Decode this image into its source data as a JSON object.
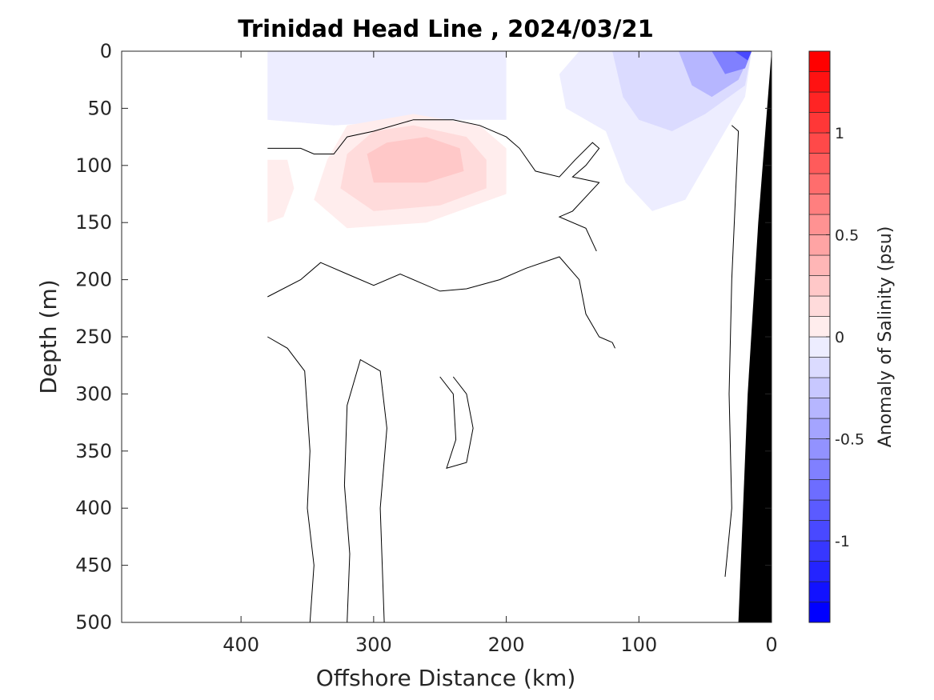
{
  "chart_data": {
    "type": "heatmap",
    "title": "Trinidad Head Line , 2024/03/21",
    "xlabel": "Offshore Distance (km)",
    "ylabel": "Depth (m)",
    "colorbar_label": "Anomaly of Salinity (psu)",
    "x_axis": {
      "range": [
        490,
        0
      ],
      "reversed": true,
      "ticks": [
        400,
        300,
        200,
        100,
        0
      ]
    },
    "y_axis": {
      "range": [
        0,
        500
      ],
      "reversed": true,
      "ticks": [
        0,
        50,
        100,
        150,
        200,
        250,
        300,
        350,
        400,
        450,
        500
      ]
    },
    "colorbar": {
      "range": [
        -1.4,
        1.4
      ],
      "step": 0.1,
      "ticks": [
        -1,
        -0.5,
        0,
        0.5,
        1
      ],
      "tick_labels": [
        "-1",
        "-0.5",
        "0",
        "0.5",
        "1"
      ],
      "negative_color": "#0000ff",
      "positive_color": "#ff0000"
    },
    "data_x_extent_km": [
      380,
      0
    ],
    "filled_regions": [
      {
        "name": "surface-negative-west",
        "value": -0.1,
        "points": [
          [
            380,
            0
          ],
          [
            200,
            0
          ],
          [
            200,
            60
          ],
          [
            260,
            60
          ],
          [
            330,
            65
          ],
          [
            380,
            60
          ]
        ]
      },
      {
        "name": "surface-negative-east",
        "value": -0.1,
        "points": [
          [
            145,
            0
          ],
          [
            15,
            0
          ],
          [
            20,
            40
          ],
          [
            40,
            80
          ],
          [
            65,
            130
          ],
          [
            90,
            140
          ],
          [
            110,
            115
          ],
          [
            125,
            70
          ],
          [
            155,
            50
          ],
          [
            160,
            20
          ]
        ]
      },
      {
        "name": "nearshore-negative-1",
        "value": -0.2,
        "points": [
          [
            120,
            0
          ],
          [
            15,
            0
          ],
          [
            20,
            30
          ],
          [
            50,
            55
          ],
          [
            75,
            70
          ],
          [
            100,
            60
          ],
          [
            112,
            40
          ]
        ]
      },
      {
        "name": "nearshore-negative-2",
        "value": -0.4,
        "points": [
          [
            70,
            0
          ],
          [
            15,
            0
          ],
          [
            25,
            25
          ],
          [
            45,
            40
          ],
          [
            60,
            30
          ]
        ]
      },
      {
        "name": "nearshore-negative-3",
        "value": -0.7,
        "points": [
          [
            45,
            0
          ],
          [
            15,
            0
          ],
          [
            20,
            15
          ],
          [
            35,
            20
          ]
        ]
      },
      {
        "name": "nearshore-negative-4",
        "value": -1.0,
        "points": [
          [
            28,
            0
          ],
          [
            15,
            0
          ],
          [
            18,
            8
          ]
        ]
      },
      {
        "name": "subsurface-positive-1",
        "value": 0.1,
        "points": [
          [
            335,
            95
          ],
          [
            320,
            65
          ],
          [
            270,
            55
          ],
          [
            220,
            65
          ],
          [
            200,
            85
          ],
          [
            200,
            125
          ],
          [
            260,
            150
          ],
          [
            320,
            155
          ],
          [
            345,
            130
          ]
        ]
      },
      {
        "name": "subsurface-positive-2",
        "value": 0.2,
        "points": [
          [
            320,
            90
          ],
          [
            300,
            70
          ],
          [
            270,
            65
          ],
          [
            230,
            75
          ],
          [
            215,
            95
          ],
          [
            215,
            120
          ],
          [
            250,
            135
          ],
          [
            300,
            140
          ],
          [
            325,
            120
          ]
        ]
      },
      {
        "name": "subsurface-positive-3",
        "value": 0.3,
        "points": [
          [
            305,
            90
          ],
          [
            290,
            80
          ],
          [
            260,
            75
          ],
          [
            235,
            85
          ],
          [
            232,
            105
          ],
          [
            260,
            115
          ],
          [
            300,
            115
          ]
        ]
      },
      {
        "name": "western-positive",
        "value": 0.1,
        "points": [
          [
            380,
            95
          ],
          [
            365,
            95
          ],
          [
            360,
            120
          ],
          [
            368,
            145
          ],
          [
            380,
            150
          ]
        ]
      }
    ],
    "contour_lines_zero": [
      {
        "name": "zero-contour-upper",
        "points": [
          [
            380,
            85
          ],
          [
            355,
            85
          ],
          [
            345,
            90
          ],
          [
            330,
            90
          ],
          [
            320,
            75
          ],
          [
            300,
            70
          ],
          [
            270,
            60
          ],
          [
            240,
            60
          ],
          [
            220,
            65
          ],
          [
            200,
            75
          ],
          [
            190,
            85
          ],
          [
            178,
            105
          ],
          [
            160,
            110
          ],
          [
            148,
            95
          ],
          [
            135,
            80
          ],
          [
            130,
            85
          ],
          [
            140,
            100
          ],
          [
            150,
            110
          ],
          [
            130,
            115
          ],
          [
            150,
            140
          ],
          [
            160,
            145
          ],
          [
            140,
            155
          ],
          [
            132,
            175
          ]
        ]
      },
      {
        "name": "zero-contour-mid",
        "points": [
          [
            380,
            215
          ],
          [
            355,
            200
          ],
          [
            340,
            185
          ],
          [
            320,
            195
          ],
          [
            300,
            205
          ],
          [
            280,
            195
          ],
          [
            250,
            210
          ],
          [
            230,
            208
          ],
          [
            205,
            200
          ],
          [
            185,
            190
          ],
          [
            160,
            180
          ],
          [
            145,
            200
          ],
          [
            140,
            230
          ],
          [
            130,
            250
          ],
          [
            120,
            255
          ],
          [
            118,
            260
          ]
        ]
      },
      {
        "name": "zero-contour-west-column",
        "points": [
          [
            380,
            250
          ],
          [
            365,
            260
          ],
          [
            352,
            280
          ],
          [
            348,
            350
          ],
          [
            350,
            400
          ],
          [
            345,
            450
          ],
          [
            348,
            500
          ]
        ]
      },
      {
        "name": "zero-contour-column-2",
        "points": [
          [
            320,
            500
          ],
          [
            318,
            440
          ],
          [
            322,
            380
          ],
          [
            320,
            310
          ],
          [
            310,
            270
          ],
          [
            295,
            280
          ],
          [
            290,
            330
          ],
          [
            295,
            400
          ],
          [
            292,
            500
          ]
        ]
      },
      {
        "name": "zero-contour-lens",
        "points": [
          [
            250,
            285
          ],
          [
            240,
            300
          ],
          [
            238,
            340
          ],
          [
            245,
            365
          ],
          [
            230,
            360
          ],
          [
            225,
            330
          ],
          [
            230,
            300
          ],
          [
            240,
            285
          ]
        ]
      },
      {
        "name": "zero-contour-nearshore",
        "points": [
          [
            30,
            65
          ],
          [
            25,
            70
          ],
          [
            30,
            200
          ],
          [
            32,
            300
          ],
          [
            30,
            400
          ],
          [
            35,
            460
          ]
        ]
      }
    ],
    "land_mask": {
      "color": "#000000",
      "points": [
        [
          0,
          0
        ],
        [
          0,
          500
        ],
        [
          25,
          500
        ],
        [
          18,
          300
        ],
        [
          10,
          150
        ],
        [
          0,
          0
        ]
      ]
    }
  }
}
